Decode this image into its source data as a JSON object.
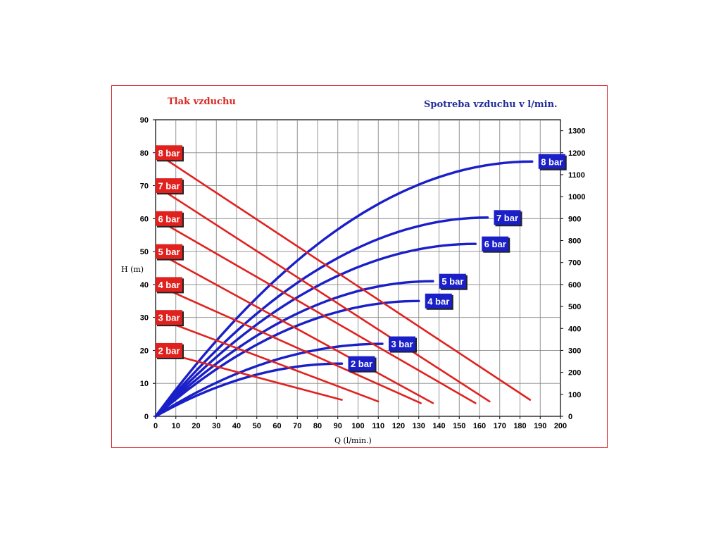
{
  "chart_data": {
    "type": "line",
    "title_left": "Tlak vzduchu",
    "title_right": "Spotreba vzduchu v l/min.",
    "xlabel": "Q (l/min.)",
    "ylabel": "H (m)",
    "xlim": [
      0,
      200
    ],
    "ylim_left": [
      0,
      90
    ],
    "ylim_right": [
      0,
      1350
    ],
    "x_ticks": [
      "0",
      "10",
      "20",
      "30",
      "40",
      "50",
      "60",
      "70",
      "80",
      "90",
      "100",
      "110",
      "120",
      "130",
      "140",
      "150",
      "160",
      "170",
      "180",
      "190",
      "200"
    ],
    "y_left_ticks": [
      "0",
      "10",
      "20",
      "30",
      "40",
      "50",
      "60",
      "70",
      "80",
      "90"
    ],
    "y_right_ticks": [
      "0",
      "100",
      "200",
      "300",
      "400",
      "500",
      "600",
      "700",
      "800",
      "900",
      "1000",
      "1100",
      "1200",
      "1300"
    ],
    "grid": true,
    "colors": {
      "head": "#e0221f",
      "air": "#1a1fc8",
      "frame": "#d9262b"
    },
    "head_series": [
      {
        "name": "2 bar",
        "x": [
          0,
          92
        ],
        "y": [
          20,
          5
        ]
      },
      {
        "name": "3 bar",
        "x": [
          0,
          110
        ],
        "y": [
          30,
          4.5
        ]
      },
      {
        "name": "4 bar",
        "x": [
          0,
          131
        ],
        "y": [
          40,
          4
        ]
      },
      {
        "name": "5 bar",
        "x": [
          0,
          137
        ],
        "y": [
          50,
          4
        ]
      },
      {
        "name": "6 bar",
        "x": [
          0,
          158
        ],
        "y": [
          60,
          4
        ]
      },
      {
        "name": "7 bar",
        "x": [
          0,
          165
        ],
        "y": [
          70,
          4.5
        ]
      },
      {
        "name": "8 bar",
        "x": [
          0,
          185
        ],
        "y": [
          80,
          5
        ]
      }
    ],
    "air_series": [
      {
        "name": "2 bar",
        "end_x": 92,
        "end_y": 240
      },
      {
        "name": "3 bar",
        "end_x": 112,
        "end_y": 330
      },
      {
        "name": "4 bar",
        "end_x": 130,
        "end_y": 525
      },
      {
        "name": "5 bar",
        "end_x": 137,
        "end_y": 615
      },
      {
        "name": "6 bar",
        "end_x": 158,
        "end_y": 785
      },
      {
        "name": "7 bar",
        "end_x": 164,
        "end_y": 905
      },
      {
        "name": "8 bar",
        "end_x": 186,
        "end_y": 1160
      }
    ]
  }
}
